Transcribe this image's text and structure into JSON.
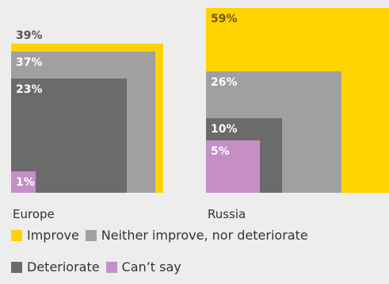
{
  "chart_data": {
    "type": "bar",
    "variant": "nested-squares",
    "categories": [
      "Europe",
      "Russia"
    ],
    "series": [
      {
        "name": "Improve",
        "color": "#ffd200",
        "values": [
          39,
          59
        ]
      },
      {
        "name": "Neither improve, nor deteriorate",
        "color": "#a0a0a0",
        "values": [
          37,
          26
        ]
      },
      {
        "name": "Deteriorate",
        "color": "#6b6b6b",
        "values": [
          23,
          10
        ]
      },
      {
        "name": "Can’t say",
        "color": "#c58fc6",
        "values": [
          1,
          5
        ]
      }
    ],
    "value_suffix": "%",
    "label_colors": {
      "Improve": "#555555",
      "other": "#ffffff"
    },
    "legend_position": "bottom",
    "legend_rows": [
      [
        0,
        1
      ],
      [
        2,
        3
      ]
    ]
  }
}
